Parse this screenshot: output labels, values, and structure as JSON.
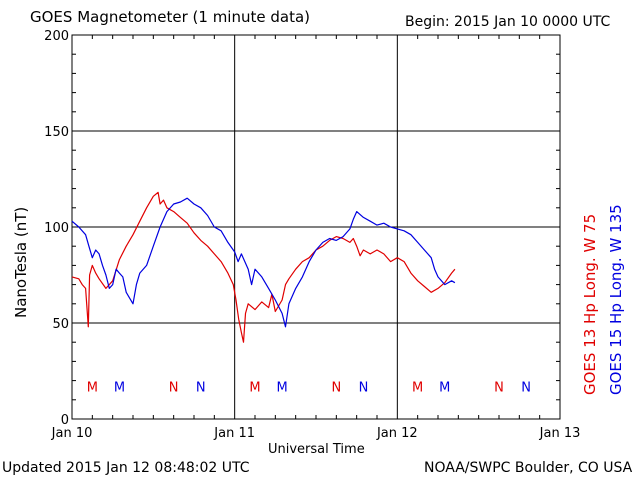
{
  "header": {
    "title": "GOES Magnetometer (1 minute data)",
    "begin": "Begin:  2015 Jan 10 0000 UTC"
  },
  "footer": {
    "updated": "Updated 2015 Jan 12 08:48:02 UTC",
    "source": "NOAA/SWPC Boulder, CO USA"
  },
  "legend": {
    "goes13": "GOES 13 Hp  Long. W 75",
    "goes15": "GOES 15 Hp  Long. W 135"
  },
  "colors": {
    "goes13": "#e00000",
    "goes15": "#0000e0",
    "axis": "#000000"
  },
  "chart_data": {
    "type": "line",
    "xlabel": "Universal Time",
    "ylabel": "NanoTesla (nT)",
    "ylim": [
      0,
      200
    ],
    "xlim_hours": [
      0,
      72
    ],
    "x_ticks": [
      {
        "hour": 0,
        "label": "Jan 10"
      },
      {
        "hour": 24,
        "label": "Jan 11"
      },
      {
        "hour": 48,
        "label": "Jan 12"
      },
      {
        "hour": 72,
        "label": "Jan 13"
      }
    ],
    "y_ticks": [
      0,
      50,
      100,
      150,
      200
    ],
    "grid": true,
    "x_unit": "hours since 2015 Jan 10 0000 UTC",
    "series": [
      {
        "name": "GOES 13 Hp  Long. W 75",
        "color": "#e00000",
        "points": [
          [
            0,
            74
          ],
          [
            1,
            73
          ],
          [
            1.5,
            70
          ],
          [
            2,
            68
          ],
          [
            2.4,
            48
          ],
          [
            2.6,
            75
          ],
          [
            3,
            80
          ],
          [
            3.5,
            76
          ],
          [
            4,
            73
          ],
          [
            5,
            68
          ],
          [
            6,
            72
          ],
          [
            7,
            83
          ],
          [
            8,
            90
          ],
          [
            9,
            96
          ],
          [
            10,
            103
          ],
          [
            11,
            110
          ],
          [
            12,
            116
          ],
          [
            12.7,
            118
          ],
          [
            13,
            112
          ],
          [
            13.5,
            114
          ],
          [
            14,
            110
          ],
          [
            15,
            108
          ],
          [
            16,
            105
          ],
          [
            17,
            102
          ],
          [
            18,
            97
          ],
          [
            19,
            93
          ],
          [
            20,
            90
          ],
          [
            21,
            86
          ],
          [
            22,
            82
          ],
          [
            23,
            76
          ],
          [
            23.8,
            70
          ],
          [
            24.2,
            62
          ],
          [
            24.6,
            52
          ],
          [
            25,
            45
          ],
          [
            25.3,
            40
          ],
          [
            25.6,
            55
          ],
          [
            26,
            60
          ],
          [
            27,
            57
          ],
          [
            28,
            61
          ],
          [
            29,
            58
          ],
          [
            29.5,
            65
          ],
          [
            30,
            56
          ],
          [
            31,
            62
          ],
          [
            31.5,
            70
          ],
          [
            32,
            73
          ],
          [
            33,
            78
          ],
          [
            34,
            82
          ],
          [
            35,
            84
          ],
          [
            36,
            88
          ],
          [
            37,
            90
          ],
          [
            38,
            93
          ],
          [
            39,
            95
          ],
          [
            40,
            94
          ],
          [
            41,
            92
          ],
          [
            41.5,
            94
          ],
          [
            42,
            90
          ],
          [
            42.5,
            85
          ],
          [
            43,
            88
          ],
          [
            44,
            86
          ],
          [
            45,
            88
          ],
          [
            46,
            86
          ],
          [
            47,
            82
          ],
          [
            48,
            84
          ],
          [
            49,
            82
          ],
          [
            50,
            76
          ],
          [
            51,
            72
          ],
          [
            52,
            69
          ],
          [
            53,
            66
          ],
          [
            54,
            68
          ],
          [
            55,
            71
          ],
          [
            56,
            76
          ],
          [
            56.5,
            78
          ]
        ]
      },
      {
        "name": "GOES 15 Hp  Long. W 135",
        "color": "#0000e0",
        "points": [
          [
            0,
            103
          ],
          [
            1,
            100
          ],
          [
            2,
            96
          ],
          [
            2.5,
            90
          ],
          [
            3,
            84
          ],
          [
            3.5,
            88
          ],
          [
            4,
            86
          ],
          [
            4.5,
            80
          ],
          [
            5,
            75
          ],
          [
            5.5,
            68
          ],
          [
            6,
            70
          ],
          [
            6.5,
            78
          ],
          [
            7,
            76
          ],
          [
            7.5,
            74
          ],
          [
            8,
            66
          ],
          [
            9,
            60
          ],
          [
            9.5,
            70
          ],
          [
            10,
            76
          ],
          [
            11,
            80
          ],
          [
            12,
            90
          ],
          [
            13,
            100
          ],
          [
            14,
            108
          ],
          [
            15,
            112
          ],
          [
            16,
            113
          ],
          [
            17,
            115
          ],
          [
            18,
            112
          ],
          [
            19,
            110
          ],
          [
            20,
            106
          ],
          [
            21,
            100
          ],
          [
            22,
            98
          ],
          [
            23,
            92
          ],
          [
            24,
            87
          ],
          [
            24.5,
            82
          ],
          [
            25,
            86
          ],
          [
            26,
            78
          ],
          [
            26.5,
            70
          ],
          [
            27,
            78
          ],
          [
            28,
            74
          ],
          [
            29,
            68
          ],
          [
            30,
            62
          ],
          [
            31,
            55
          ],
          [
            31.5,
            48
          ],
          [
            32,
            60
          ],
          [
            33,
            68
          ],
          [
            34,
            74
          ],
          [
            35,
            82
          ],
          [
            36,
            88
          ],
          [
            37,
            92
          ],
          [
            38,
            94
          ],
          [
            39,
            93
          ],
          [
            40,
            95
          ],
          [
            41,
            99
          ],
          [
            41.5,
            104
          ],
          [
            42,
            108
          ],
          [
            43,
            105
          ],
          [
            44,
            103
          ],
          [
            45,
            101
          ],
          [
            46,
            102
          ],
          [
            47,
            100
          ],
          [
            48,
            99
          ],
          [
            49,
            98
          ],
          [
            50,
            96
          ],
          [
            51,
            92
          ],
          [
            52,
            88
          ],
          [
            53,
            84
          ],
          [
            53.5,
            78
          ],
          [
            54,
            74
          ],
          [
            55,
            70
          ],
          [
            56,
            72
          ],
          [
            56.5,
            71
          ]
        ]
      }
    ],
    "markers": [
      {
        "hour": 3,
        "text": "M",
        "series": "goes13"
      },
      {
        "hour": 7,
        "text": "M",
        "series": "goes15"
      },
      {
        "hour": 15,
        "text": "N",
        "series": "goes13"
      },
      {
        "hour": 19,
        "text": "N",
        "series": "goes15"
      },
      {
        "hour": 27,
        "text": "M",
        "series": "goes13"
      },
      {
        "hour": 31,
        "text": "M",
        "series": "goes15"
      },
      {
        "hour": 39,
        "text": "N",
        "series": "goes13"
      },
      {
        "hour": 43,
        "text": "N",
        "series": "goes15"
      },
      {
        "hour": 51,
        "text": "M",
        "series": "goes13"
      },
      {
        "hour": 55,
        "text": "M",
        "series": "goes15"
      },
      {
        "hour": 63,
        "text": "N",
        "series": "goes13"
      },
      {
        "hour": 67,
        "text": "N",
        "series": "goes15"
      }
    ],
    "marker_value": 17
  }
}
